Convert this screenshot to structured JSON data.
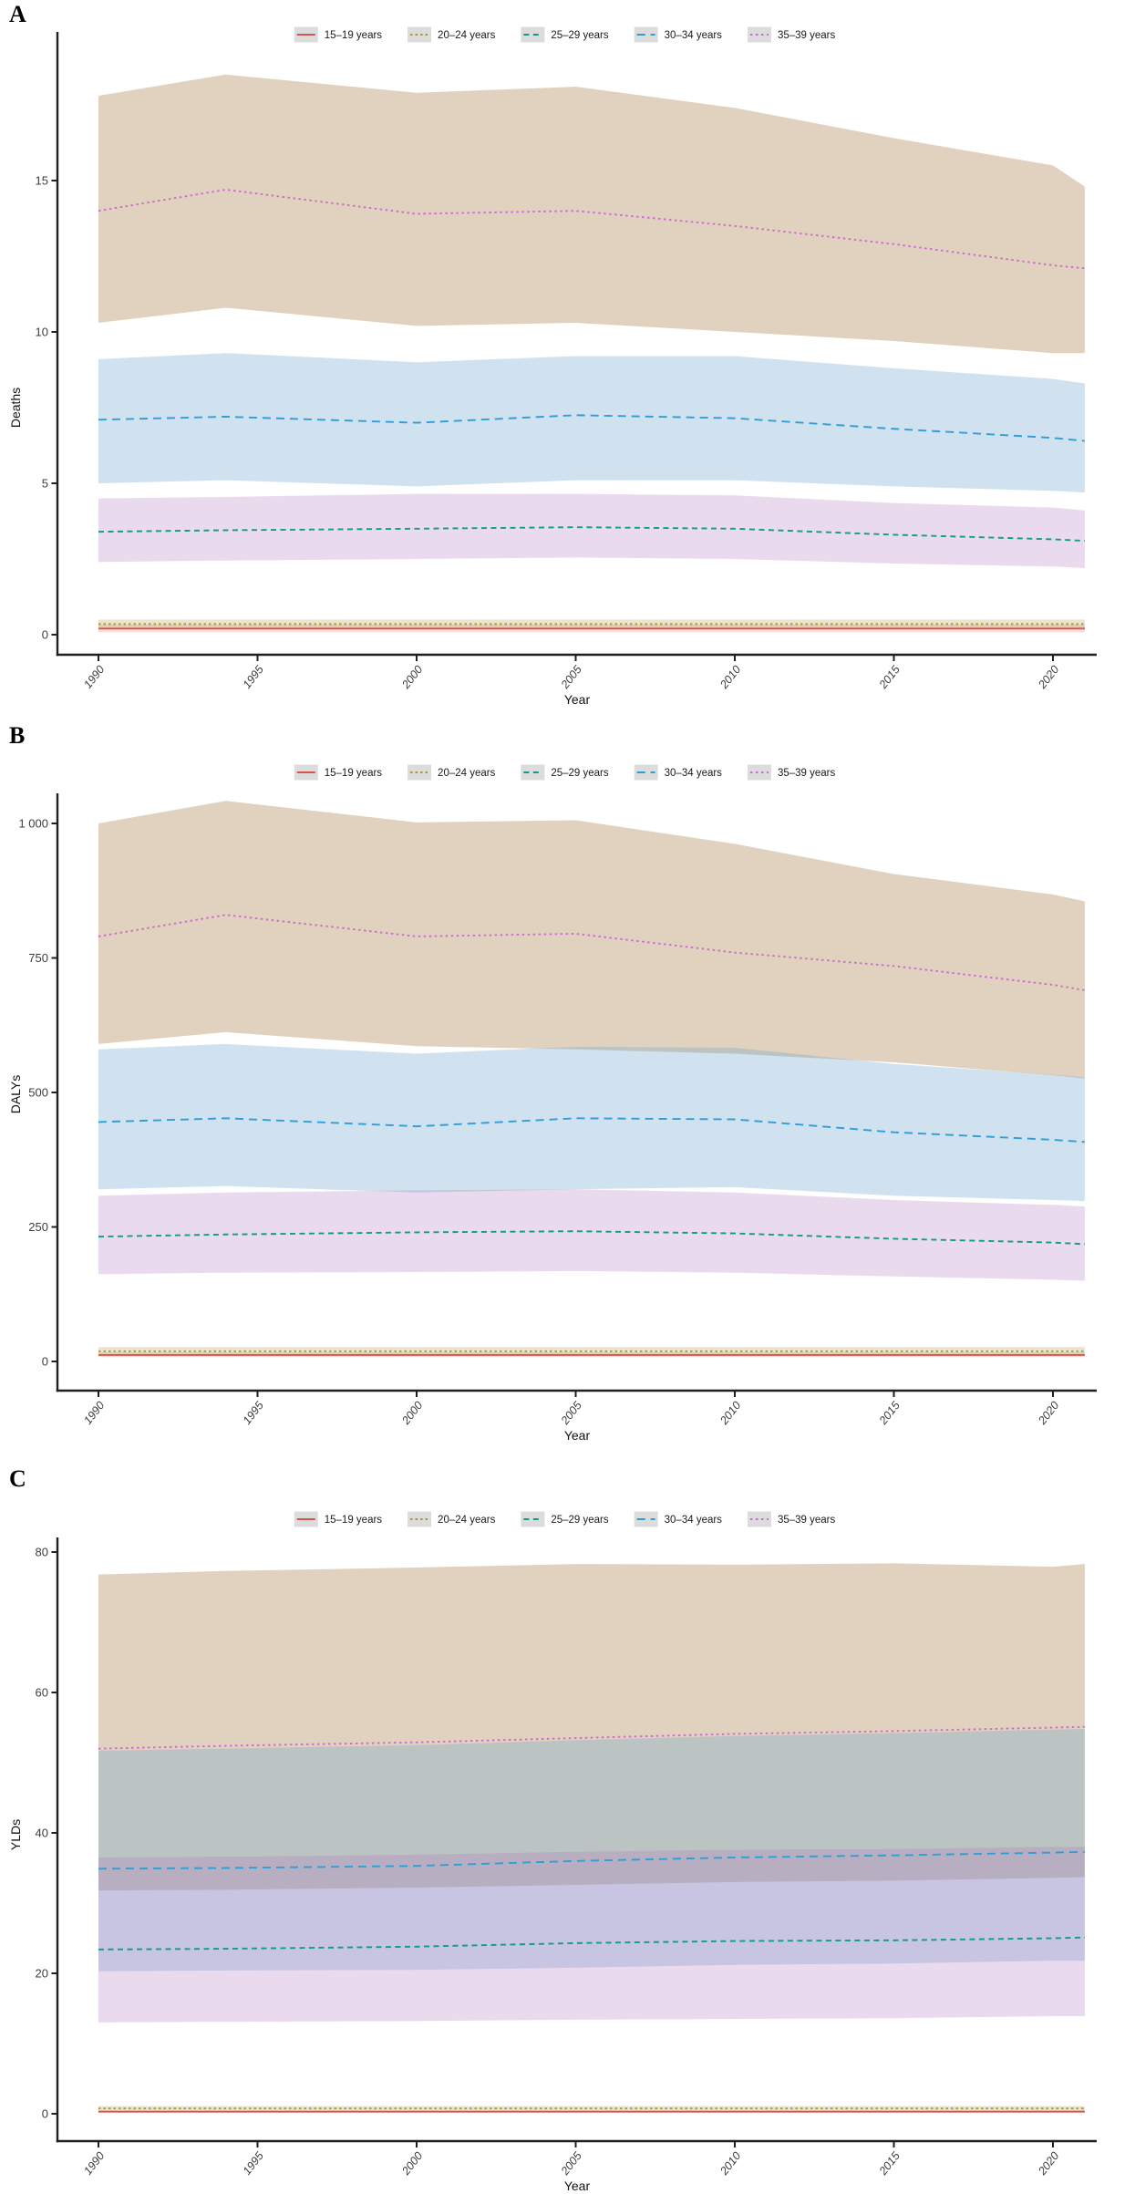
{
  "figure_background": "#ffffff",
  "axis_color": "#1f1f1f",
  "tick_label_color": "#3d3d3d",
  "axis_title_color": "#111111",
  "legend": {
    "key_fill": "#dcdcdc",
    "items": [
      {
        "name": "15–19 years",
        "line_color": "#d9534f",
        "dash": "solid",
        "band_color": "rgba(217,83,79,0.18)"
      },
      {
        "name": "20–24 years",
        "line_color": "#a89a3c",
        "dash": "dotted",
        "band_color": "rgba(171,154,58,0.25)"
      },
      {
        "name": "25–29 years",
        "line_color": "#0f9e80",
        "dash": "dashed-short",
        "band_color": "rgba(178,120,188,0.27)"
      },
      {
        "name": "30–34 years",
        "line_color": "#2e9fd6",
        "dash": "dashed-long",
        "band_color": "rgba(110,165,205,0.32)"
      },
      {
        "name": "35–39 years",
        "line_color": "#cf6bcf",
        "dash": "dotted-fine",
        "band_color": "rgba(186,155,110,0.45)"
      }
    ]
  },
  "chart_data": [
    {
      "type": "line",
      "panel_label": "A",
      "title": "",
      "xlabel": "Year",
      "ylabel": "Deaths",
      "x": [
        1990,
        1994,
        2000,
        2005,
        2010,
        2015,
        2020,
        2021
      ],
      "xticks": [
        1990,
        1995,
        2000,
        2005,
        2010,
        2015,
        2020
      ],
      "xtick_labels": [
        "1990",
        "1995",
        "2000",
        "2005",
        "2010",
        "2015",
        "2020"
      ],
      "yticks": [
        0,
        5,
        10,
        15
      ],
      "ytick_labels": [
        "0",
        "5",
        "10",
        "15"
      ],
      "ylim": [
        0,
        18.6
      ],
      "grid": false,
      "legend_position": "top",
      "series": [
        {
          "name": "15–19 years",
          "values": [
            0.2,
            0.2,
            0.2,
            0.2,
            0.2,
            0.2,
            0.2,
            0.2
          ],
          "lower": [
            0.08,
            0.08,
            0.08,
            0.08,
            0.08,
            0.08,
            0.08,
            0.08
          ],
          "upper": [
            0.33,
            0.33,
            0.33,
            0.33,
            0.33,
            0.33,
            0.33,
            0.33
          ]
        },
        {
          "name": "20–24 years",
          "values": [
            0.35,
            0.35,
            0.35,
            0.35,
            0.35,
            0.35,
            0.35,
            0.35
          ],
          "lower": [
            0.2,
            0.2,
            0.2,
            0.2,
            0.2,
            0.2,
            0.2,
            0.2
          ],
          "upper": [
            0.5,
            0.5,
            0.5,
            0.5,
            0.5,
            0.5,
            0.5,
            0.5
          ]
        },
        {
          "name": "25–29 years",
          "values": [
            3.4,
            3.45,
            3.5,
            3.55,
            3.5,
            3.3,
            3.15,
            3.1
          ],
          "lower": [
            2.4,
            2.45,
            2.5,
            2.55,
            2.5,
            2.35,
            2.25,
            2.2
          ],
          "upper": [
            4.5,
            4.55,
            4.65,
            4.65,
            4.6,
            4.35,
            4.2,
            4.1
          ]
        },
        {
          "name": "30–34 years",
          "values": [
            7.1,
            7.2,
            7.0,
            7.25,
            7.15,
            6.8,
            6.5,
            6.4
          ],
          "lower": [
            5.0,
            5.1,
            4.9,
            5.1,
            5.1,
            4.9,
            4.75,
            4.7
          ],
          "upper": [
            9.1,
            9.3,
            9.0,
            9.2,
            9.2,
            8.8,
            8.45,
            8.3
          ]
        },
        {
          "name": "35–39 years",
          "values": [
            14.0,
            14.7,
            13.9,
            14.0,
            13.5,
            12.9,
            12.2,
            12.1
          ],
          "lower": [
            10.3,
            10.8,
            10.2,
            10.3,
            10.0,
            9.7,
            9.3,
            9.3
          ],
          "upper": [
            17.8,
            18.5,
            17.9,
            18.1,
            17.4,
            16.4,
            15.5,
            14.8
          ]
        }
      ]
    },
    {
      "type": "line",
      "panel_label": "B",
      "title": "",
      "xlabel": "Year",
      "ylabel": "DALYs",
      "x": [
        1990,
        1994,
        2000,
        2005,
        2010,
        2015,
        2020,
        2021
      ],
      "xticks": [
        1990,
        1995,
        2000,
        2005,
        2010,
        2015,
        2020
      ],
      "xtick_labels": [
        "1990",
        "1995",
        "2000",
        "2005",
        "2010",
        "2015",
        "2020"
      ],
      "yticks": [
        0,
        250,
        500,
        750,
        1000
      ],
      "ytick_labels": [
        "0",
        "250",
        "500",
        "750",
        "1 000"
      ],
      "ylim": [
        0,
        1060
      ],
      "grid": false,
      "legend_position": "top",
      "series": [
        {
          "name": "15–19 years",
          "values": [
            12,
            12,
            12,
            12,
            12,
            12,
            12,
            12
          ],
          "lower": [
            8,
            8,
            8,
            8,
            8,
            8,
            8,
            8
          ],
          "upper": [
            17,
            17,
            17,
            17,
            17,
            17,
            17,
            17
          ]
        },
        {
          "name": "20–24 years",
          "values": [
            19,
            19,
            19,
            19,
            19,
            19,
            19,
            19
          ],
          "lower": [
            13,
            13,
            13,
            13,
            13,
            13,
            13,
            13
          ],
          "upper": [
            27,
            27,
            27,
            27,
            27,
            27,
            27,
            27
          ]
        },
        {
          "name": "25–29 years",
          "values": [
            232,
            236,
            240,
            242,
            238,
            228,
            221,
            218
          ],
          "lower": [
            162,
            165,
            166,
            168,
            165,
            158,
            152,
            150
          ],
          "upper": [
            308,
            314,
            318,
            320,
            314,
            300,
            291,
            288
          ]
        },
        {
          "name": "30–34 years",
          "values": [
            445,
            452,
            437,
            452,
            450,
            426,
            412,
            408
          ],
          "lower": [
            320,
            326,
            314,
            320,
            324,
            308,
            300,
            298
          ],
          "upper": [
            580,
            590,
            572,
            585,
            583,
            553,
            533,
            528
          ]
        },
        {
          "name": "35–39 years",
          "values": [
            790,
            830,
            790,
            795,
            760,
            735,
            700,
            690
          ],
          "lower": [
            590,
            612,
            586,
            580,
            572,
            556,
            532,
            526
          ],
          "upper": [
            1000,
            1042,
            1002,
            1006,
            962,
            906,
            868,
            855
          ]
        }
      ]
    },
    {
      "type": "line",
      "panel_label": "C",
      "title": "",
      "xlabel": "Year",
      "ylabel": "YLDs",
      "x": [
        1990,
        1994,
        2000,
        2005,
        2010,
        2015,
        2020,
        2021
      ],
      "xticks": [
        1990,
        1995,
        2000,
        2005,
        2010,
        2015,
        2020
      ],
      "xtick_labels": [
        "1990",
        "1995",
        "2000",
        "2005",
        "2010",
        "2015",
        "2020"
      ],
      "yticks": [
        0,
        20,
        40,
        60,
        80
      ],
      "ytick_labels": [
        "0",
        "20",
        "40",
        "60",
        "80"
      ],
      "ylim": [
        0,
        82
      ],
      "grid": false,
      "legend_position": "top",
      "series": [
        {
          "name": "15–19 years",
          "values": [
            0.3,
            0.3,
            0.3,
            0.3,
            0.3,
            0.3,
            0.3,
            0.3
          ],
          "lower": [
            0.15,
            0.15,
            0.15,
            0.15,
            0.15,
            0.15,
            0.15,
            0.15
          ],
          "upper": [
            0.5,
            0.5,
            0.5,
            0.5,
            0.5,
            0.5,
            0.5,
            0.5
          ]
        },
        {
          "name": "20–24 years",
          "values": [
            0.75,
            0.75,
            0.75,
            0.75,
            0.75,
            0.75,
            0.75,
            0.75
          ],
          "lower": [
            0.45,
            0.45,
            0.45,
            0.45,
            0.45,
            0.45,
            0.45,
            0.45
          ],
          "upper": [
            1.1,
            1.1,
            1.1,
            1.1,
            1.1,
            1.1,
            1.1,
            1.1
          ]
        },
        {
          "name": "25–29 years",
          "values": [
            23.4,
            23.5,
            23.8,
            24.3,
            24.6,
            24.7,
            25.0,
            25.1
          ],
          "lower": [
            13.0,
            13.1,
            13.2,
            13.4,
            13.5,
            13.6,
            13.9,
            13.9
          ],
          "upper": [
            36.5,
            36.6,
            36.9,
            37.3,
            37.6,
            37.7,
            38.0,
            38.0
          ]
        },
        {
          "name": "30–34 years",
          "values": [
            34.9,
            35.0,
            35.3,
            36.0,
            36.5,
            36.8,
            37.2,
            37.3
          ],
          "lower": [
            20.3,
            20.4,
            20.5,
            20.8,
            21.2,
            21.4,
            21.8,
            21.8
          ],
          "upper": [
            51.7,
            52.0,
            52.5,
            53.2,
            53.8,
            54.2,
            54.7,
            54.8
          ]
        },
        {
          "name": "35–39 years",
          "values": [
            52.0,
            52.4,
            52.9,
            53.5,
            54.1,
            54.5,
            55.0,
            55.1
          ],
          "lower": [
            31.8,
            31.9,
            32.2,
            32.6,
            33.0,
            33.2,
            33.6,
            33.7
          ],
          "upper": [
            76.8,
            77.3,
            77.8,
            78.3,
            78.2,
            78.4,
            77.9,
            78.3
          ]
        }
      ]
    }
  ]
}
